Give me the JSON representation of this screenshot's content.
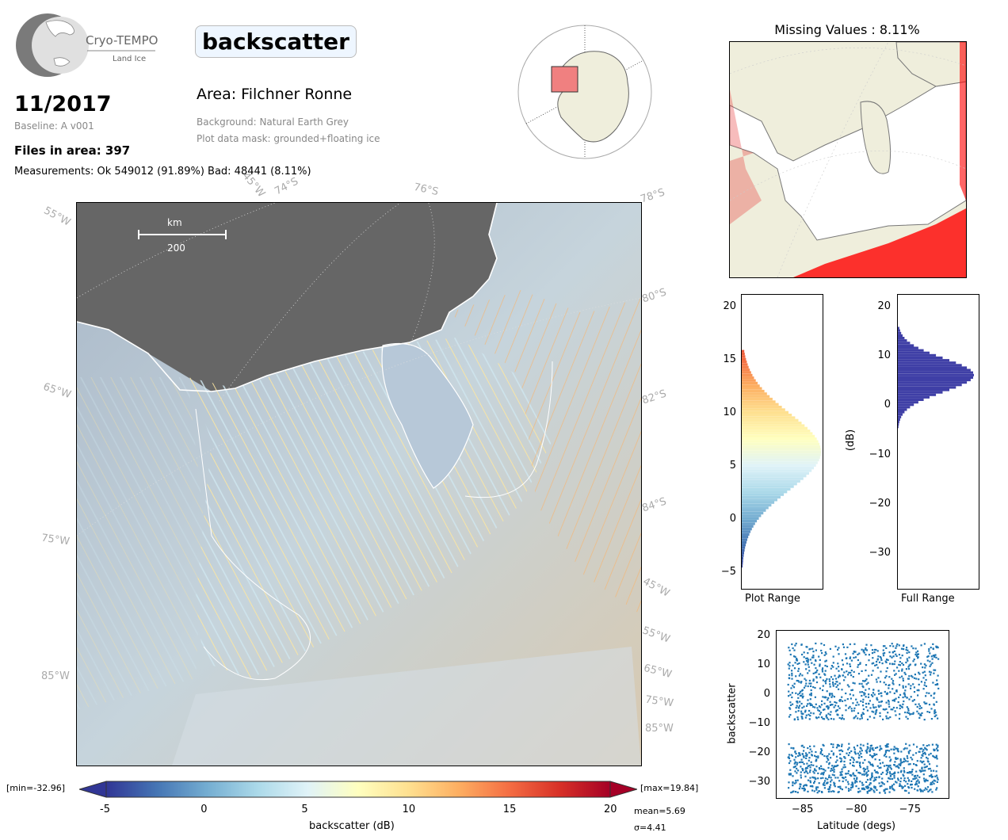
{
  "logo": {
    "line1": "Cryo-TEMPO",
    "line2": "Land Ice"
  },
  "header": {
    "month": "11/2017",
    "baseline": "Baseline: A v001",
    "files": "Files in area: 397",
    "measurements": "Measurements: Ok 549012 (91.89%) Bad: 48441 (8.11%)",
    "variable": "backscatter",
    "area": "Area: Filchner Ronne",
    "background": "Background: Natural Earth Grey",
    "mask": "Plot data mask: grounded+floating ice"
  },
  "missing_title": "Missing Values : 8.11%",
  "map": {
    "scale_unit": "km",
    "scale_value": "200",
    "lat_labels": [
      "74°S",
      "76°S",
      "78°S",
      "80°S",
      "82°S",
      "84°S"
    ],
    "lon_labels": [
      "55°W",
      "65°W",
      "75°W",
      "85°W",
      "45°W",
      "55°W",
      "65°W",
      "75°W",
      "85°W",
      "45°W"
    ]
  },
  "colorbar": {
    "min_label": "[min=-32.96]",
    "max_label": "[max=19.84]",
    "ticks": [
      "-5",
      "0",
      "5",
      "10",
      "15",
      "20"
    ],
    "label": "backscatter (dB)",
    "mean": "mean=5.69",
    "sigma": "σ=4.41",
    "colors": [
      "#313695",
      "#4575b4",
      "#74add1",
      "#abd9e9",
      "#e0f3f8",
      "#ffffbf",
      "#fee090",
      "#fdae61",
      "#f46d43",
      "#d73027",
      "#a50026"
    ]
  },
  "hist_plot": {
    "xlabel": "Plot Range",
    "yticks": [
      "20",
      "15",
      "10",
      "5",
      "0",
      "−5"
    ]
  },
  "hist_full": {
    "xlabel": "Full Range",
    "ylabel": "(dB)",
    "yticks": [
      "20",
      "10",
      "0",
      "−10",
      "−20",
      "−30"
    ],
    "color": "#3f3fa6"
  },
  "chart_data": [
    {
      "type": "scatter",
      "xlabel": "Latitude (degs)",
      "ylabel": "backscatter",
      "xlim": [
        -87.5,
        -71.5
      ],
      "ylim": [
        -35,
        22
      ],
      "xticks": [
        "−85",
        "−80",
        "−75"
      ],
      "yticks": [
        "20",
        "10",
        "0",
        "−10",
        "−20",
        "−30"
      ],
      "color": "#1f77b4",
      "x_range": [
        -86.5,
        -72.5
      ],
      "y_upper": 20,
      "y_lower": -33
    }
  ]
}
